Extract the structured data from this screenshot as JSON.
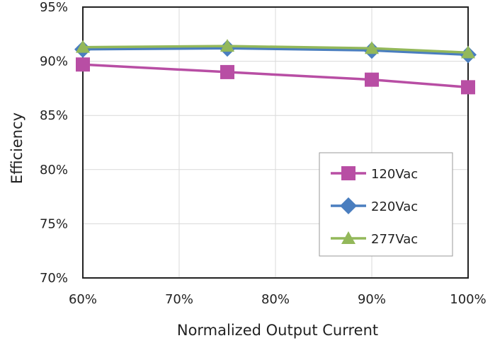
{
  "chart_data": {
    "type": "line",
    "xlabel": "Normalized Output Current",
    "ylabel": "Efficiency",
    "xlim": [
      0.6,
      1.0
    ],
    "ylim": [
      70,
      95
    ],
    "x_ticks": [
      {
        "value": 0.6,
        "label": "60%"
      },
      {
        "value": 0.7,
        "label": "70%"
      },
      {
        "value": 0.8,
        "label": "80%"
      },
      {
        "value": 0.9,
        "label": "90%"
      },
      {
        "value": 1.0,
        "label": "100%"
      }
    ],
    "y_ticks": [
      {
        "value": 70,
        "label": "70%"
      },
      {
        "value": 75,
        "label": "75%"
      },
      {
        "value": 80,
        "label": "80%"
      },
      {
        "value": 85,
        "label": "85%"
      },
      {
        "value": 90,
        "label": "90%"
      },
      {
        "value": 95,
        "label": "95%"
      }
    ],
    "grid": "vertical",
    "legend_position": "lower-right",
    "series": [
      {
        "name": "120Vac",
        "color": "#b84ea4",
        "marker": "square",
        "x": [
          0.6,
          0.75,
          0.9,
          1.0
        ],
        "y": [
          89.7,
          89.0,
          88.3,
          87.6
        ]
      },
      {
        "name": "220Vac",
        "color": "#4a7ebf",
        "marker": "diamond",
        "x": [
          0.6,
          0.75,
          0.9,
          1.0
        ],
        "y": [
          91.1,
          91.2,
          91.0,
          90.6
        ]
      },
      {
        "name": "277Vac",
        "color": "#93b85a",
        "marker": "triangle",
        "x": [
          0.6,
          0.75,
          0.9,
          1.0
        ],
        "y": [
          91.3,
          91.4,
          91.2,
          90.8
        ]
      }
    ]
  }
}
